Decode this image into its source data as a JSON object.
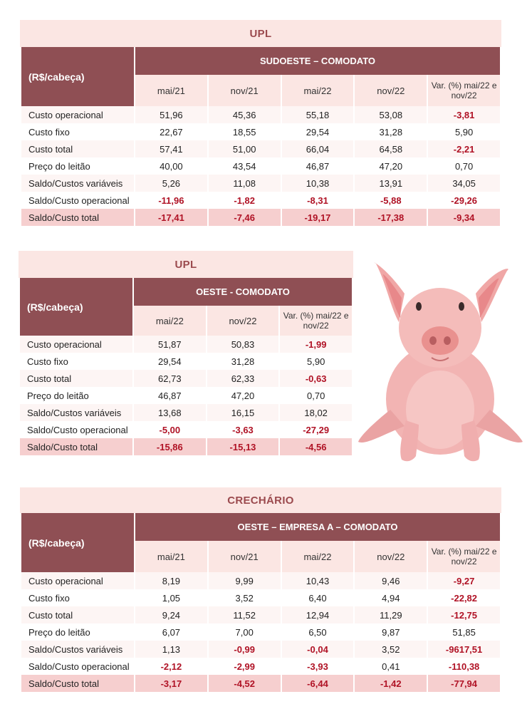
{
  "tables": [
    {
      "title": "UPL",
      "unit": "(R$/cabeça)",
      "group": "SUDOESTE – COMODATO",
      "columns": [
        "mai/21",
        "nov/21",
        "mai/22",
        "nov/22",
        "Var. (%) mai/22 e nov/22"
      ],
      "rows": [
        {
          "label": "Custo operacional",
          "values": [
            "51,96",
            "45,36",
            "55,18",
            "53,08",
            "-3,81"
          ]
        },
        {
          "label": "Custo fixo",
          "values": [
            "22,67",
            "18,55",
            "29,54",
            "31,28",
            "5,90"
          ]
        },
        {
          "label": "Custo total",
          "values": [
            "57,41",
            "51,00",
            "66,04",
            "64,58",
            "-2,21"
          ]
        },
        {
          "label": "Preço do leitão",
          "values": [
            "40,00",
            "43,54",
            "46,87",
            "47,20",
            "0,70"
          ]
        },
        {
          "label": "Saldo/Custos variáveis",
          "values": [
            "5,26",
            "11,08",
            "10,38",
            "13,91",
            "34,05"
          ]
        },
        {
          "label": "Saldo/Custo operacional",
          "values": [
            "-11,96",
            "-1,82",
            "-8,31",
            "-5,88",
            "-29,26"
          ]
        },
        {
          "label": "Saldo/Custo total",
          "values": [
            "-17,41",
            "-7,46",
            "-19,17",
            "-17,38",
            "-9,34"
          ]
        }
      ]
    },
    {
      "title": "UPL",
      "unit": "(R$/cabeça)",
      "group": "OESTE - COMODATO",
      "columns": [
        "mai/22",
        "nov/22",
        "Var. (%) mai/22 e nov/22"
      ],
      "rows": [
        {
          "label": "Custo operacional",
          "values": [
            "51,87",
            "50,83",
            "-1,99"
          ]
        },
        {
          "label": "Custo fixo",
          "values": [
            "29,54",
            "31,28",
            "5,90"
          ]
        },
        {
          "label": "Custo total",
          "values": [
            "62,73",
            "62,33",
            "-0,63"
          ]
        },
        {
          "label": "Preço do leitão",
          "values": [
            "46,87",
            "47,20",
            "0,70"
          ]
        },
        {
          "label": "Saldo/Custos variáveis",
          "values": [
            "13,68",
            "16,15",
            "18,02"
          ]
        },
        {
          "label": "Saldo/Custo operacional",
          "values": [
            "-5,00",
            "-3,63",
            "-27,29"
          ]
        },
        {
          "label": "Saldo/Custo total",
          "values": [
            "-15,86",
            "-15,13",
            "-4,56"
          ]
        }
      ]
    },
    {
      "title": "CRECHÁRIO",
      "unit": "(R$/cabeça)",
      "group": "OESTE – EMPRESA A – COMODATO",
      "columns": [
        "mai/21",
        "nov/21",
        "mai/22",
        "nov/22",
        "Var. (%) mai/22 e nov/22"
      ],
      "rows": [
        {
          "label": "Custo operacional",
          "values": [
            "8,19",
            "9,99",
            "10,43",
            "9,46",
            "-9,27"
          ]
        },
        {
          "label": "Custo fixo",
          "values": [
            "1,05",
            "3,52",
            "6,40",
            "4,94",
            "-22,82"
          ]
        },
        {
          "label": "Custo total",
          "values": [
            "9,24",
            "11,52",
            "12,94",
            "11,29",
            "-12,75"
          ]
        },
        {
          "label": "Preço do leitão",
          "values": [
            "6,07",
            "7,00",
            "6,50",
            "9,87",
            "51,85"
          ]
        },
        {
          "label": "Saldo/Custos variáveis",
          "values": [
            "1,13",
            "-0,99",
            "-0,04",
            "3,52",
            "-9617,51"
          ]
        },
        {
          "label": "Saldo/Custo operacional",
          "values": [
            "-2,12",
            "-2,99",
            "-3,93",
            "0,41",
            "-110,38"
          ]
        },
        {
          "label": "Saldo/Custo total",
          "values": [
            "-3,17",
            "-4,52",
            "-6,44",
            "-1,42",
            "-77,94"
          ]
        }
      ]
    }
  ],
  "colors": {
    "title_bg": "#fbe6e3",
    "header_dark": "#8f4f54",
    "negative": "#b01225",
    "last_row": "#f6cfcf"
  },
  "illustration": "pig-illustration"
}
